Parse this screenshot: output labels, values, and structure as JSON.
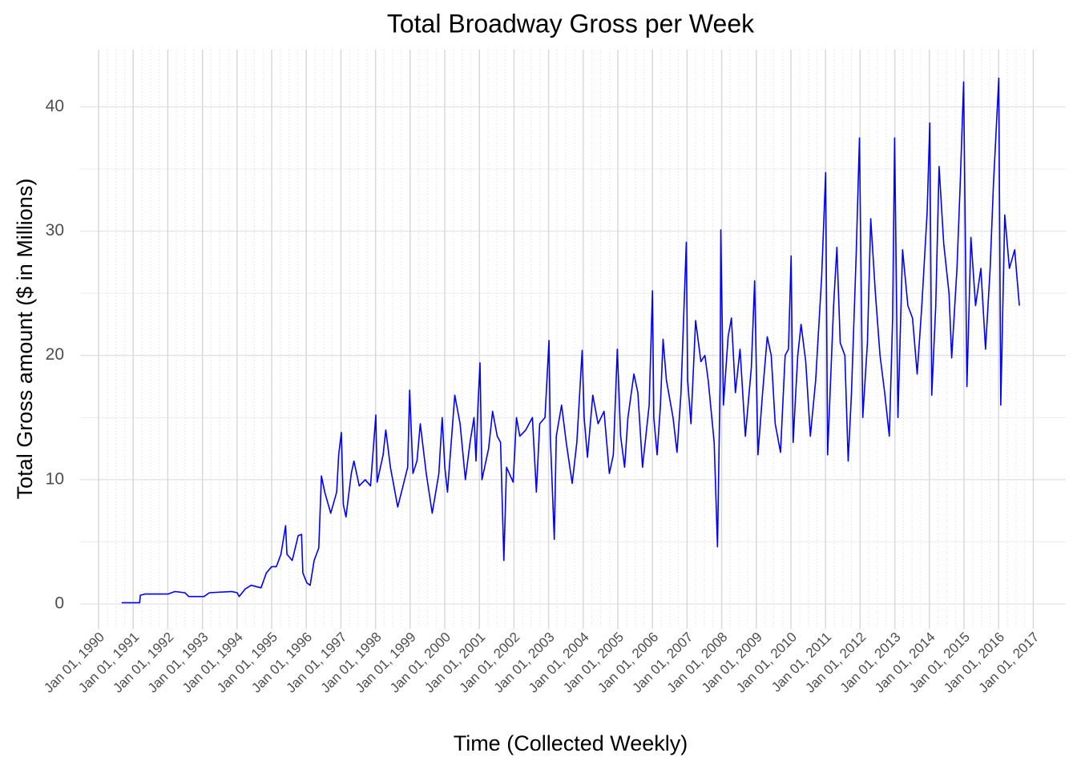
{
  "chart_data": {
    "type": "line",
    "title": "Total Broadway Gross per Week",
    "x_label": "Time (Collected Weekly)",
    "y_label": "Total Gross amount ($ in Millions)",
    "color": "#0000ff",
    "grid": true,
    "xlim": [
      "1989-06-20",
      "2017-12-10"
    ],
    "ylim": [
      -2.0,
      44.6
    ],
    "yticks": [
      0,
      10,
      20,
      30,
      40
    ],
    "xticks": [
      {
        "value": "1990-01-01",
        "label": "Jan 01, 1990"
      },
      {
        "value": "1991-01-01",
        "label": "Jan 01, 1991"
      },
      {
        "value": "1992-01-01",
        "label": "Jan 01, 1992"
      },
      {
        "value": "1993-01-01",
        "label": "Jan 01, 1993"
      },
      {
        "value": "1994-01-01",
        "label": "Jan 01, 1994"
      },
      {
        "value": "1995-01-01",
        "label": "Jan 01, 1995"
      },
      {
        "value": "1996-01-01",
        "label": "Jan 01, 1996"
      },
      {
        "value": "1997-01-01",
        "label": "Jan 01, 1997"
      },
      {
        "value": "1998-01-01",
        "label": "Jan 01, 1998"
      },
      {
        "value": "1999-01-01",
        "label": "Jan 01, 1999"
      },
      {
        "value": "2000-01-01",
        "label": "Jan 01, 2000"
      },
      {
        "value": "2001-01-01",
        "label": "Jan 01, 2001"
      },
      {
        "value": "2002-01-01",
        "label": "Jan 01, 2002"
      },
      {
        "value": "2003-01-01",
        "label": "Jan 01, 2003"
      },
      {
        "value": "2004-01-01",
        "label": "Jan 01, 2004"
      },
      {
        "value": "2005-01-01",
        "label": "Jan 01, 2005"
      },
      {
        "value": "2006-01-01",
        "label": "Jan 01, 2006"
      },
      {
        "value": "2007-01-01",
        "label": "Jan 01, 2007"
      },
      {
        "value": "2008-01-01",
        "label": "Jan 01, 2008"
      },
      {
        "value": "2009-01-01",
        "label": "Jan 01, 2009"
      },
      {
        "value": "2010-01-01",
        "label": "Jan 01, 2010"
      },
      {
        "value": "2011-01-01",
        "label": "Jan 01, 2011"
      },
      {
        "value": "2012-01-01",
        "label": "Jan 01, 2012"
      },
      {
        "value": "2013-01-01",
        "label": "Jan 01, 2013"
      },
      {
        "value": "2014-01-01",
        "label": "Jan 01, 2014"
      },
      {
        "value": "2015-01-01",
        "label": "Jan 01, 2015"
      },
      {
        "value": "2016-01-01",
        "label": "Jan 01, 2016"
      },
      {
        "value": "2017-01-01",
        "label": "Jan 01, 2017"
      }
    ],
    "x": [
      "1990-09-01",
      "1991-03-10",
      "1991-03-17",
      "1991-05-05",
      "1992-01-05",
      "1992-03-15",
      "1992-07-01",
      "1992-08-09",
      "1993-01-17",
      "1993-03-14",
      "1993-11-07",
      "1994-01-02",
      "1994-01-23",
      "1994-03-27",
      "1994-05-29",
      "1994-09-11",
      "1994-11-06",
      "1995-01-01",
      "1995-02-19",
      "1995-04-09",
      "1995-05-28",
      "1995-06-11",
      "1995-08-06",
      "1995-10-08",
      "1995-11-12",
      "1995-11-26",
      "1996-01-07",
      "1996-02-11",
      "1996-03-24",
      "1996-05-12",
      "1996-06-09",
      "1996-07-14",
      "1996-09-15",
      "1996-11-17",
      "1996-12-08",
      "1997-01-05",
      "1997-01-26",
      "1997-02-23",
      "1997-04-20",
      "1997-05-18",
      "1997-07-13",
      "1997-09-14",
      "1997-11-09",
      "1998-01-04",
      "1998-01-18",
      "1998-03-22",
      "1998-04-19",
      "1998-06-07",
      "1998-08-23",
      "1998-10-18",
      "1998-12-06",
      "1998-12-27",
      "1999-01-31",
      "1999-03-14",
      "1999-04-18",
      "1999-06-20",
      "1999-08-22",
      "1999-10-31",
      "1999-12-05",
      "2000-01-02",
      "2000-01-30",
      "2000-04-16",
      "2000-06-11",
      "2000-08-06",
      "2000-09-24",
      "2000-11-05",
      "2000-11-26",
      "2000-12-17",
      "2001-01-07",
      "2001-01-28",
      "2001-04-08",
      "2001-05-20",
      "2001-07-08",
      "2001-08-12",
      "2001-09-16",
      "2001-10-14",
      "2001-12-23",
      "2002-01-27",
      "2002-03-03",
      "2002-05-05",
      "2002-07-14",
      "2002-08-25",
      "2002-09-29",
      "2002-11-24",
      "2003-01-05",
      "2003-01-19",
      "2003-03-02",
      "2003-03-23",
      "2003-05-18",
      "2003-07-06",
      "2003-09-07",
      "2003-10-26",
      "2003-12-21",
      "2004-01-11",
      "2004-02-15",
      "2004-04-11",
      "2004-06-06",
      "2004-08-08",
      "2004-10-03",
      "2004-11-14",
      "2004-12-26",
      "2005-01-30",
      "2005-03-13",
      "2005-04-17",
      "2005-06-19",
      "2005-07-31",
      "2005-09-18",
      "2005-11-27",
      "2006-01-01",
      "2006-01-15",
      "2006-02-19",
      "2006-03-26",
      "2006-04-23",
      "2006-05-28",
      "2006-08-06",
      "2006-09-17",
      "2006-10-29",
      "2006-12-24",
      "2007-01-07",
      "2007-02-11",
      "2007-04-01",
      "2007-05-27",
      "2007-07-08",
      "2007-08-12",
      "2007-10-14",
      "2007-11-18",
      "2007-12-16",
      "2007-12-23",
      "2008-01-20",
      "2008-03-09",
      "2008-04-13",
      "2008-05-25",
      "2008-07-13",
      "2008-09-07",
      "2008-11-09",
      "2008-12-14",
      "2009-01-18",
      "2009-03-08",
      "2009-04-26",
      "2009-06-07",
      "2009-07-19",
      "2009-09-13",
      "2009-11-01",
      "2009-12-06",
      "2010-01-03",
      "2010-01-24",
      "2010-03-14",
      "2010-04-18",
      "2010-06-06",
      "2010-07-25",
      "2010-09-19",
      "2010-11-21",
      "2011-01-02",
      "2011-01-23",
      "2011-03-27",
      "2011-05-01",
      "2011-06-05",
      "2011-07-24",
      "2011-08-28",
      "2011-10-02",
      "2011-11-20",
      "2011-12-25",
      "2012-01-29",
      "2012-03-18",
      "2012-04-22",
      "2012-06-10",
      "2012-07-29",
      "2012-09-16",
      "2012-11-04",
      "2012-12-09",
      "2012-12-30",
      "2013-02-03",
      "2013-03-24",
      "2013-05-19",
      "2013-07-07",
      "2013-08-25",
      "2013-10-13",
      "2013-12-08",
      "2014-01-05",
      "2014-01-26",
      "2014-03-09",
      "2014-04-13",
      "2014-06-01",
      "2014-07-27",
      "2014-08-24",
      "2014-10-19",
      "2014-11-23",
      "2014-12-28",
      "2015-02-01",
      "2015-03-15",
      "2015-05-03",
      "2015-06-28",
      "2015-08-16",
      "2015-10-04",
      "2015-11-08",
      "2016-01-03",
      "2016-01-24",
      "2016-03-06",
      "2016-04-24",
      "2016-06-19",
      "2016-08-07"
    ],
    "values": [
      0.1,
      0.1,
      0.7,
      0.8,
      0.8,
      1.0,
      0.9,
      0.6,
      0.6,
      0.9,
      1.0,
      0.9,
      0.6,
      1.2,
      1.5,
      1.3,
      2.5,
      3.0,
      3.0,
      4.0,
      6.3,
      4.0,
      3.5,
      5.5,
      5.6,
      2.5,
      1.7,
      1.5,
      3.5,
      4.5,
      10.3,
      9.0,
      7.3,
      9.0,
      12.0,
      13.8,
      8.0,
      7.0,
      10.5,
      11.5,
      9.5,
      10.0,
      9.5,
      15.2,
      9.8,
      12.0,
      14.0,
      11.0,
      7.8,
      9.5,
      11.0,
      17.2,
      10.5,
      11.5,
      14.5,
      10.5,
      7.3,
      10.5,
      15.0,
      11.0,
      9.0,
      16.8,
      14.5,
      10.0,
      13.0,
      15.0,
      11.5,
      16.0,
      19.4,
      10.0,
      12.5,
      15.5,
      13.5,
      13.0,
      3.5,
      11.0,
      9.8,
      15.0,
      13.5,
      14.0,
      15.0,
      9.0,
      14.5,
      15.0,
      21.2,
      13.5,
      5.2,
      13.5,
      16.0,
      13.0,
      9.7,
      13.0,
      20.4,
      15.0,
      11.8,
      16.8,
      14.5,
      15.5,
      10.5,
      12.0,
      20.5,
      13.5,
      11.0,
      15.0,
      18.5,
      17.0,
      11.0,
      16.0,
      25.2,
      15.0,
      12.0,
      16.0,
      21.3,
      18.0,
      15.0,
      12.2,
      17.0,
      29.1,
      18.0,
      14.5,
      22.8,
      19.5,
      20.0,
      18.0,
      13.0,
      4.6,
      18.0,
      30.1,
      16.0,
      21.5,
      23.0,
      17.0,
      20.5,
      13.5,
      19.0,
      26.0,
      12.0,
      17.0,
      21.5,
      20.0,
      14.5,
      12.2,
      20.0,
      20.5,
      28.0,
      13.0,
      20.0,
      22.5,
      19.5,
      13.5,
      18.0,
      26.3,
      34.7,
      12.0,
      24.0,
      28.7,
      21.0,
      20.0,
      11.5,
      17.0,
      28.0,
      37.5,
      15.0,
      21.0,
      31.0,
      25.0,
      20.0,
      17.0,
      13.5,
      23.0,
      37.5,
      15.0,
      28.5,
      24.0,
      23.0,
      18.5,
      24.0,
      31.5,
      38.7,
      16.8,
      24.0,
      35.2,
      29.0,
      25.0,
      19.8,
      27.0,
      34.0,
      42.0,
      17.5,
      29.5,
      24.0,
      27.0,
      20.5,
      27.0,
      33.8,
      42.3,
      16.0,
      31.3,
      27.0,
      28.5,
      24.0
    ]
  }
}
